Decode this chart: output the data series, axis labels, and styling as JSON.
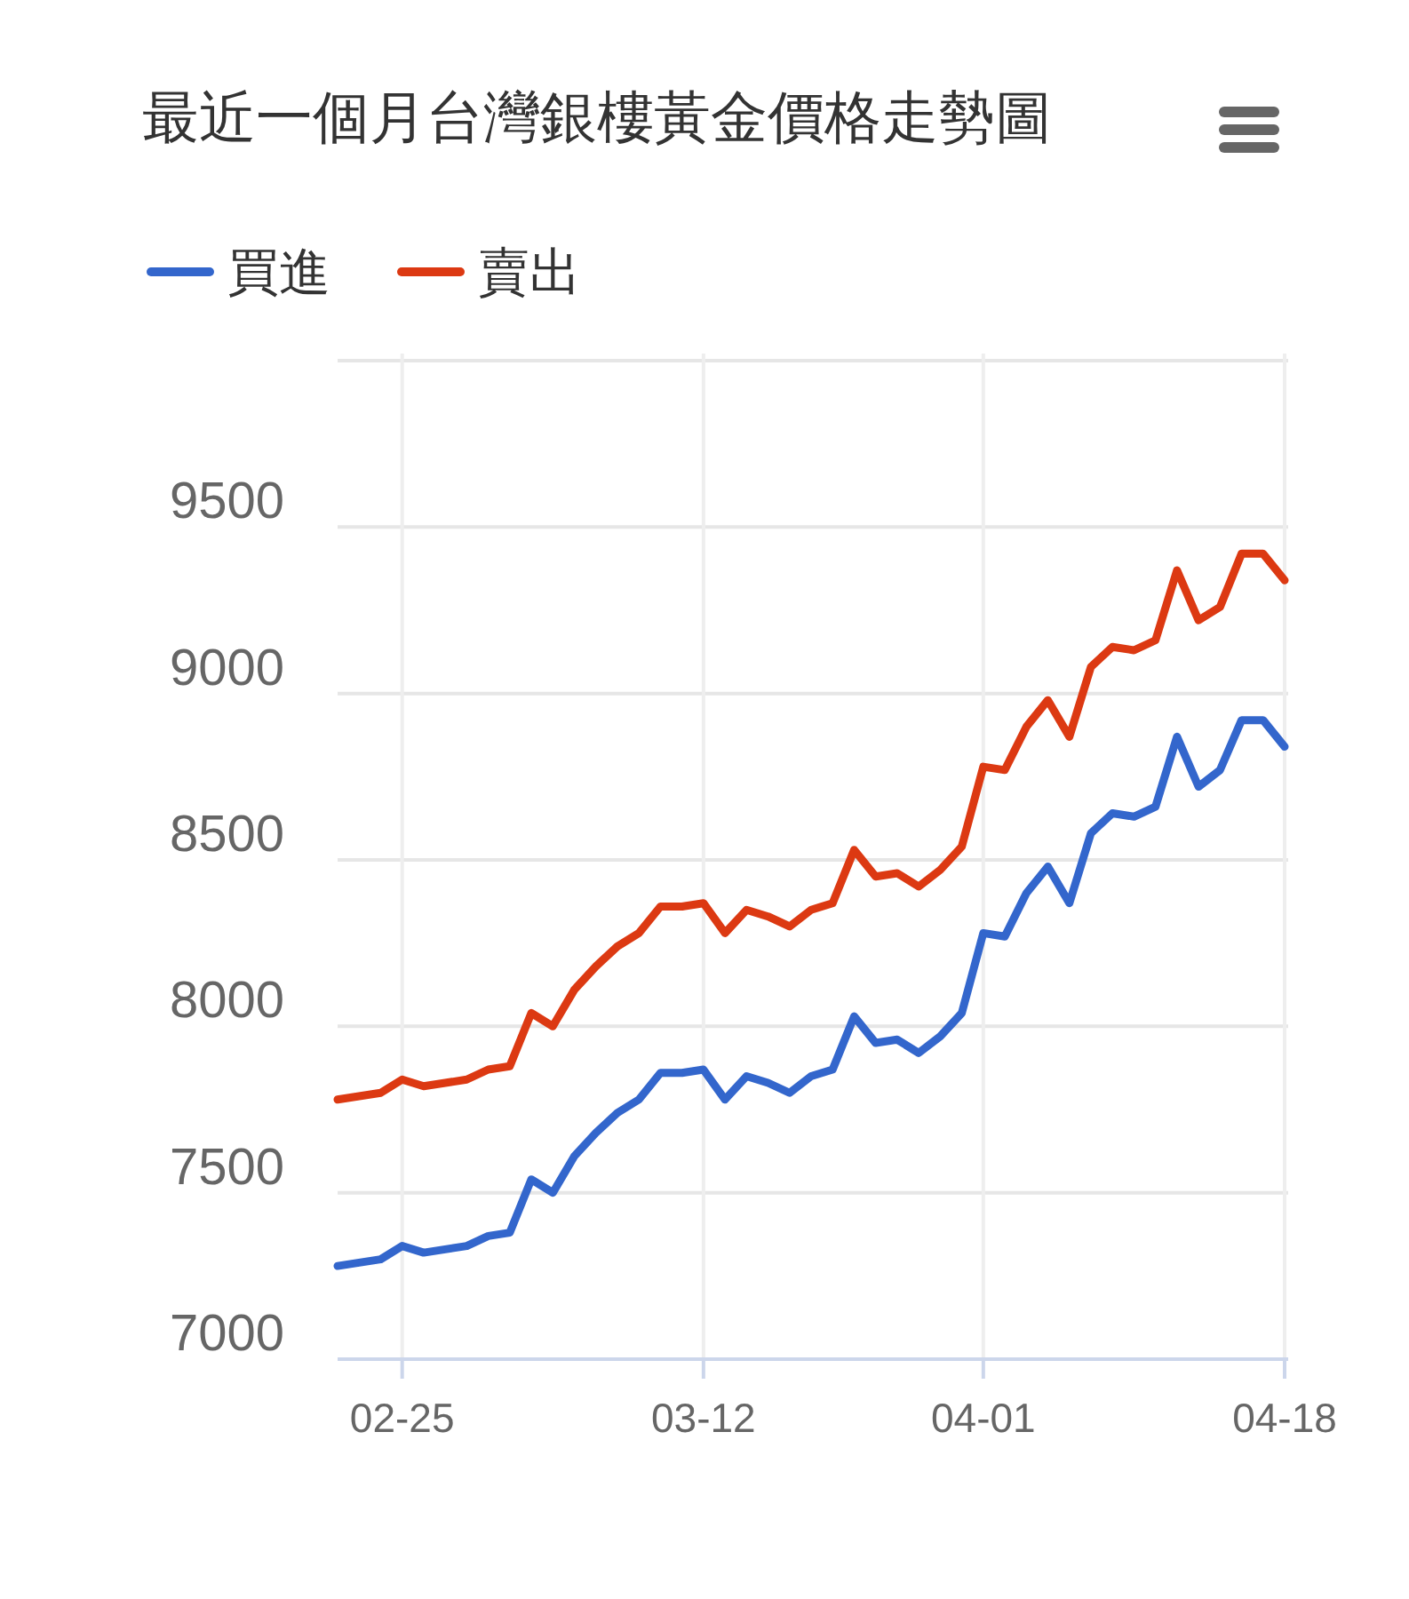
{
  "chart_data": {
    "type": "line",
    "title": "最近一個月台灣銀樓黃金價格走勢圖",
    "categories": [
      null,
      null,
      null,
      "02-25",
      null,
      null,
      null,
      null,
      null,
      null,
      null,
      null,
      null,
      null,
      null,
      null,
      null,
      "03-12",
      null,
      null,
      null,
      null,
      null,
      null,
      null,
      null,
      null,
      null,
      null,
      null,
      "04-01",
      null,
      null,
      null,
      null,
      null,
      null,
      null,
      null,
      null,
      null,
      null,
      null,
      null,
      "04-18"
    ],
    "series": [
      {
        "name": "買進",
        "color": "#3366cc",
        "values": [
          7280,
          7290,
          7300,
          7340,
          7320,
          7330,
          7340,
          7370,
          7380,
          7540,
          7500,
          7610,
          7680,
          7740,
          7780,
          7860,
          7860,
          7870,
          7780,
          7850,
          7830,
          7800,
          7850,
          7870,
          8030,
          7950,
          7960,
          7920,
          7970,
          8040,
          8280,
          8270,
          8400,
          8480,
          8370,
          8580,
          8640,
          8630,
          8660,
          8870,
          8720,
          8770,
          8920,
          8920,
          8840
        ]
      },
      {
        "name": "賣出",
        "color": "#dc3912",
        "values": [
          7780,
          7790,
          7800,
          7840,
          7820,
          7830,
          7840,
          7870,
          7880,
          8040,
          8000,
          8110,
          8180,
          8240,
          8280,
          8360,
          8360,
          8370,
          8280,
          8350,
          8330,
          8300,
          8350,
          8370,
          8530,
          8450,
          8460,
          8420,
          8470,
          8540,
          8780,
          8770,
          8900,
          8980,
          8870,
          9080,
          9140,
          9130,
          9160,
          9370,
          9220,
          9260,
          9420,
          9420,
          9340
        ]
      }
    ],
    "ylim": [
      7000,
      10000
    ],
    "yticks": [
      7000,
      7500,
      8000,
      8500,
      9000,
      9500,
      {
        "value": 10000,
        "label": null
      }
    ],
    "grid": true,
    "legend": "top left"
  }
}
